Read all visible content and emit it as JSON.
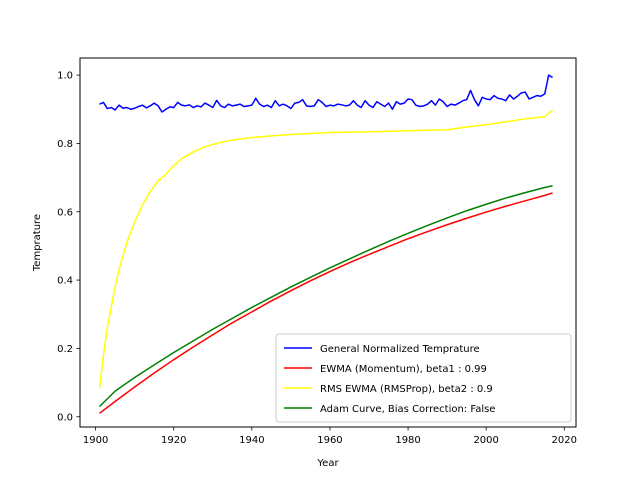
{
  "chart_data": {
    "type": "line",
    "title": "",
    "xlabel": "Year",
    "ylabel": "Temprature",
    "xlim": [
      1896,
      2023
    ],
    "ylim": [
      -0.03,
      1.05
    ],
    "xticks": [
      1900,
      1920,
      1940,
      1960,
      1980,
      2000,
      2020
    ],
    "yticks": [
      0.0,
      0.2,
      0.4,
      0.6,
      0.8,
      1.0
    ],
    "xtick_labels": [
      "1900",
      "1920",
      "1940",
      "1960",
      "1980",
      "2000",
      "2020"
    ],
    "ytick_labels": [
      "0.0",
      "0.2",
      "0.4",
      "0.6",
      "0.8",
      "1.0"
    ],
    "grid": false,
    "legend_position": "lower-right",
    "series": [
      {
        "name": "General Normalized Temprature",
        "color": "#0000ff",
        "x": [
          1901,
          1902,
          1903,
          1904,
          1905,
          1906,
          1907,
          1908,
          1909,
          1910,
          1911,
          1912,
          1913,
          1914,
          1915,
          1916,
          1917,
          1918,
          1919,
          1920,
          1921,
          1922,
          1923,
          1924,
          1925,
          1926,
          1927,
          1928,
          1929,
          1930,
          1931,
          1932,
          1933,
          1934,
          1935,
          1936,
          1937,
          1938,
          1939,
          1940,
          1941,
          1942,
          1943,
          1944,
          1945,
          1946,
          1947,
          1948,
          1949,
          1950,
          1951,
          1952,
          1953,
          1954,
          1955,
          1956,
          1957,
          1958,
          1959,
          1960,
          1961,
          1962,
          1963,
          1964,
          1965,
          1966,
          1967,
          1968,
          1969,
          1970,
          1971,
          1972,
          1973,
          1974,
          1975,
          1976,
          1977,
          1978,
          1979,
          1980,
          1981,
          1982,
          1983,
          1984,
          1985,
          1986,
          1987,
          1988,
          1989,
          1990,
          1991,
          1992,
          1993,
          1994,
          1995,
          1996,
          1997,
          1998,
          1999,
          2000,
          2001,
          2002,
          2003,
          2004,
          2005,
          2006,
          2007,
          2008,
          2009,
          2010,
          2011,
          2012,
          2013,
          2014,
          2015,
          2016,
          2017
        ],
        "y": [
          0.915,
          0.92,
          0.902,
          0.905,
          0.898,
          0.912,
          0.903,
          0.905,
          0.9,
          0.903,
          0.908,
          0.912,
          0.904,
          0.91,
          0.918,
          0.91,
          0.892,
          0.9,
          0.907,
          0.905,
          0.92,
          0.912,
          0.91,
          0.913,
          0.905,
          0.91,
          0.907,
          0.918,
          0.912,
          0.905,
          0.926,
          0.91,
          0.905,
          0.915,
          0.91,
          0.912,
          0.915,
          0.908,
          0.91,
          0.912,
          0.932,
          0.915,
          0.908,
          0.912,
          0.905,
          0.925,
          0.91,
          0.915,
          0.91,
          0.902,
          0.918,
          0.92,
          0.928,
          0.91,
          0.908,
          0.91,
          0.928,
          0.92,
          0.908,
          0.912,
          0.91,
          0.915,
          0.913,
          0.91,
          0.912,
          0.925,
          0.912,
          0.905,
          0.925,
          0.912,
          0.905,
          0.922,
          0.915,
          0.908,
          0.918,
          0.9,
          0.922,
          0.915,
          0.918,
          0.93,
          0.928,
          0.912,
          0.908,
          0.91,
          0.915,
          0.925,
          0.912,
          0.93,
          0.922,
          0.908,
          0.915,
          0.912,
          0.918,
          0.925,
          0.928,
          0.955,
          0.928,
          0.91,
          0.935,
          0.93,
          0.928,
          0.94,
          0.932,
          0.93,
          0.925,
          0.942,
          0.93,
          0.938,
          0.948,
          0.95,
          0.93,
          0.935,
          0.94,
          0.938,
          0.945,
          1.0,
          0.993
        ]
      },
      {
        "name": "EWMA (Momentum), beta1 : 0.99",
        "color": "#ff0000",
        "x": [
          1901,
          1905,
          1910,
          1915,
          1920,
          1925,
          1930,
          1935,
          1940,
          1945,
          1950,
          1955,
          1960,
          1965,
          1970,
          1975,
          1980,
          1985,
          1990,
          1995,
          2000,
          2005,
          2010,
          2015,
          2017
        ],
        "y": [
          0.01,
          0.045,
          0.087,
          0.128,
          0.167,
          0.204,
          0.24,
          0.275,
          0.307,
          0.339,
          0.369,
          0.398,
          0.425,
          0.451,
          0.475,
          0.498,
          0.521,
          0.542,
          0.562,
          0.581,
          0.599,
          0.616,
          0.632,
          0.648,
          0.655
        ]
      },
      {
        "name": "RMS EWMA (RMSProp), beta2 : 0.9",
        "color": "#ffff00",
        "x": [
          1901,
          1902,
          1903,
          1904,
          1905,
          1906,
          1907,
          1908,
          1910,
          1912,
          1914,
          1916,
          1918,
          1920,
          1922,
          1925,
          1928,
          1931,
          1935,
          1940,
          1945,
          1950,
          1955,
          1960,
          1970,
          1980,
          1990,
          1995,
          2000,
          2005,
          2010,
          2015,
          2017
        ],
        "y": [
          0.085,
          0.18,
          0.26,
          0.32,
          0.38,
          0.43,
          0.47,
          0.51,
          0.57,
          0.62,
          0.66,
          0.69,
          0.71,
          0.735,
          0.755,
          0.775,
          0.79,
          0.8,
          0.81,
          0.817,
          0.822,
          0.826,
          0.829,
          0.832,
          0.834,
          0.837,
          0.84,
          0.848,
          0.855,
          0.863,
          0.872,
          0.878,
          0.898
        ]
      },
      {
        "name": "Adam Curve, Bias Correction: False",
        "color": "#008000",
        "x": [
          1901,
          1905,
          1910,
          1915,
          1920,
          1925,
          1930,
          1935,
          1940,
          1945,
          1950,
          1955,
          1960,
          1965,
          1970,
          1975,
          1980,
          1985,
          1990,
          1995,
          2000,
          2005,
          2010,
          2015,
          2017
        ],
        "y": [
          0.03,
          0.075,
          0.115,
          0.152,
          0.188,
          0.222,
          0.256,
          0.288,
          0.32,
          0.35,
          0.38,
          0.408,
          0.436,
          0.462,
          0.488,
          0.513,
          0.537,
          0.56,
          0.582,
          0.603,
          0.622,
          0.64,
          0.656,
          0.671,
          0.676
        ]
      }
    ]
  }
}
